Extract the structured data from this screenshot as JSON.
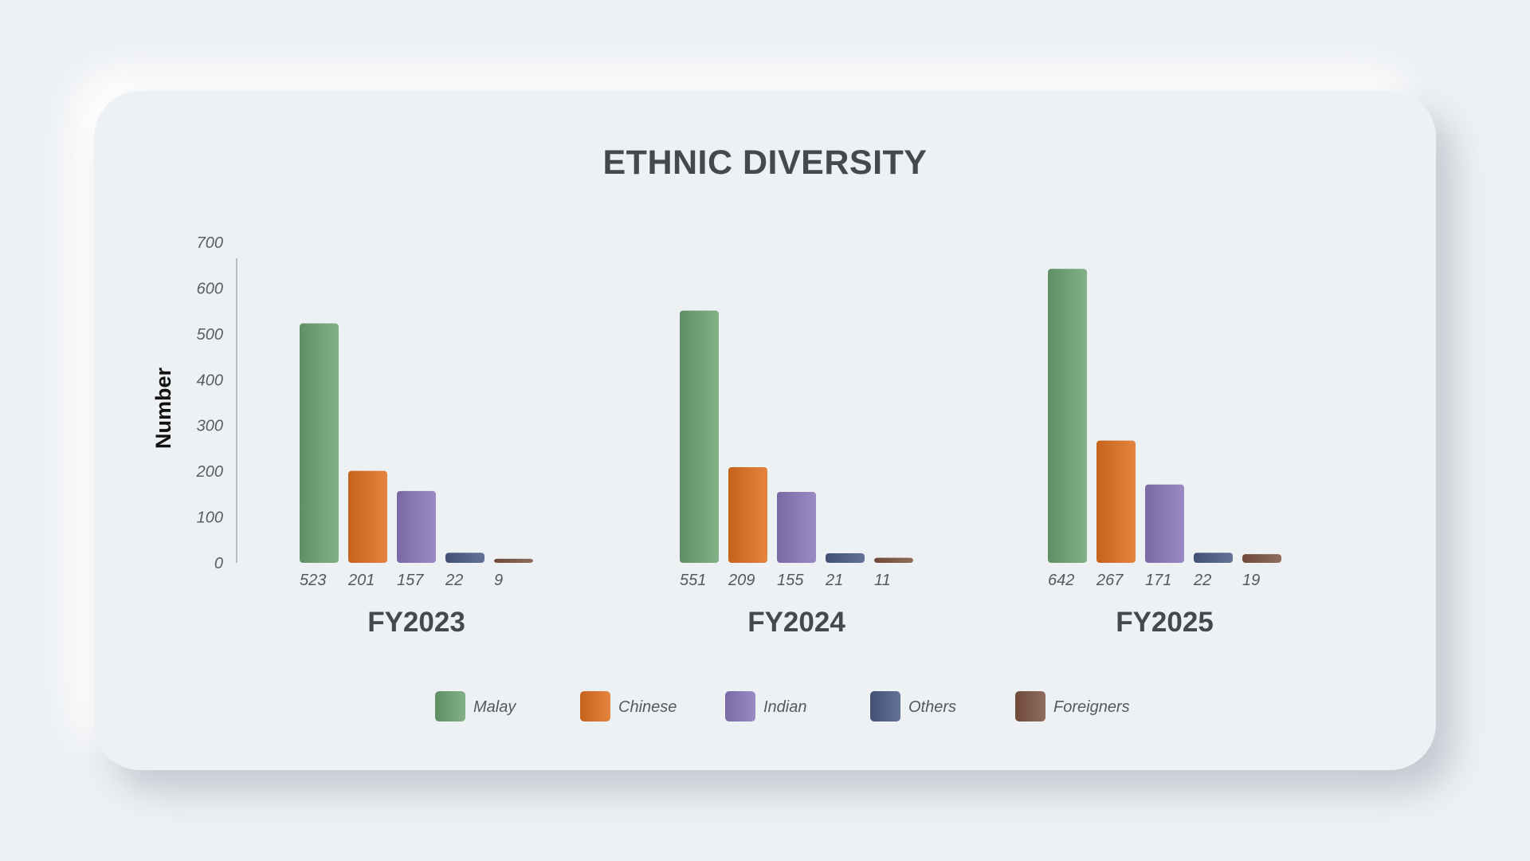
{
  "chart_data": {
    "type": "bar",
    "title": "ETHNIC DIVERSITY",
    "ylabel": "Number",
    "xlabel": "",
    "ylim": [
      0,
      700
    ],
    "yticks": [
      0,
      100,
      200,
      300,
      400,
      500,
      600,
      700
    ],
    "categories": [
      "FY2023",
      "FY2024",
      "FY2025"
    ],
    "series": [
      {
        "name": "Malay",
        "color": "#6ea373",
        "values": [
          523,
          551,
          642
        ]
      },
      {
        "name": "Chinese",
        "color": "#e0701f",
        "values": [
          201,
          209,
          267
        ]
      },
      {
        "name": "Indian",
        "color": "#8a78bb",
        "values": [
          157,
          155,
          171
        ]
      },
      {
        "name": "Others",
        "color": "#4b5b85",
        "values": [
          22,
          21,
          22
        ]
      },
      {
        "name": "Foreigners",
        "color": "#7e5443",
        "values": [
          9,
          11,
          19
        ]
      }
    ],
    "legend_position": "bottom",
    "grid": false
  }
}
